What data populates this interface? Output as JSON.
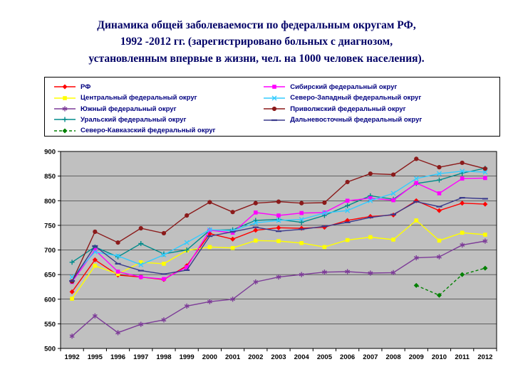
{
  "title": {
    "text": "Динамика общей заболеваемости по федеральным округам РФ,\n1992 -2012 гг. (зарегистрировано больных с диагнозом,\nустановленным впервые в жизни, чел. на 1000 человек населения)."
  },
  "colors": {
    "title_text": "#000066",
    "legend_text": "#000080",
    "plot_background": "#c0c0c0",
    "gridline": "#000000"
  },
  "chart_data": {
    "type": "line",
    "x": [
      "1992",
      "1995",
      "1996",
      "1997",
      "1998",
      "1999",
      "2000",
      "2001",
      "2002",
      "2003",
      "2004",
      "2005",
      "2006",
      "2007",
      "2008",
      "2009",
      "2010",
      "2011",
      "2012"
    ],
    "ylim": [
      500,
      900
    ],
    "ytick_step": 50,
    "grid": "horizontal",
    "legend_position": "top-box-two-columns",
    "plot_bg": "#c0c0c0",
    "series": [
      {
        "name": "РФ",
        "color": "#ff0000",
        "marker": "diamond",
        "dashed": false,
        "legend_col": 0,
        "values": [
          615,
          680,
          649,
          645,
          640,
          668,
          733,
          722,
          740,
          745,
          744,
          746,
          760,
          768,
          771,
          800,
          780,
          795,
          793
        ]
      },
      {
        "name": "Центральный федеральный округ",
        "color": "#ffff00",
        "marker": "square",
        "dashed": false,
        "legend_col": 0,
        "values": [
          601,
          668,
          651,
          675,
          672,
          699,
          706,
          704,
          719,
          718,
          714,
          706,
          720,
          726,
          721,
          760,
          719,
          735,
          731
        ]
      },
      {
        "name": "Южный федеральный округ",
        "color": "#7d3c98",
        "marker": "asterisk",
        "dashed": false,
        "legend_col": 0,
        "values": [
          525,
          566,
          532,
          549,
          558,
          586,
          595,
          600,
          635,
          645,
          650,
          655,
          656,
          653,
          654,
          684,
          686,
          710,
          718
        ]
      },
      {
        "name": "Уральский федеральный округ",
        "color": "#008b8b",
        "marker": "plus",
        "dashed": false,
        "legend_col": 0,
        "values": [
          675,
          706,
          686,
          713,
          692,
          700,
          740,
          741,
          760,
          762,
          756,
          770,
          790,
          810,
          803,
          835,
          842,
          856,
          866
        ]
      },
      {
        "name": "Северо-Кавказский федеральный округ",
        "color": "#008000",
        "marker": "diamond",
        "dashed": true,
        "legend_col": 0,
        "values": [
          null,
          null,
          null,
          null,
          null,
          null,
          null,
          null,
          null,
          null,
          null,
          null,
          null,
          null,
          null,
          628,
          608,
          650,
          663
        ]
      },
      {
        "name": "Сибирский федеральный округ",
        "color": "#ff00ff",
        "marker": "square",
        "dashed": false,
        "legend_col": 1,
        "values": [
          635,
          700,
          656,
          645,
          641,
          665,
          740,
          735,
          776,
          770,
          775,
          776,
          800,
          805,
          801,
          836,
          815,
          845,
          846
        ]
      },
      {
        "name": "Северо-Западный федеральный округ",
        "color": "#33ccff",
        "marker": "x",
        "dashed": false,
        "legend_col": 1,
        "values": [
          645,
          696,
          688,
          670,
          690,
          715,
          741,
          739,
          755,
          760,
          762,
          775,
          780,
          800,
          815,
          845,
          855,
          860,
          858
        ]
      },
      {
        "name": "Приволжский федеральный округ",
        "color": "#8b1a1a",
        "marker": "circle",
        "dashed": false,
        "legend_col": 1,
        "values": [
          636,
          737,
          715,
          744,
          734,
          770,
          797,
          777,
          795,
          798,
          795,
          796,
          838,
          855,
          853,
          885,
          868,
          877,
          865
        ]
      },
      {
        "name": "Дальневосточный федеральный округ",
        "color": "#3a3a8c",
        "marker": "dash",
        "dashed": false,
        "legend_col": 1,
        "values": [
          637,
          708,
          672,
          658,
          651,
          659,
          728,
          737,
          746,
          738,
          742,
          748,
          756,
          766,
          772,
          798,
          788,
          806,
          804
        ]
      }
    ]
  }
}
